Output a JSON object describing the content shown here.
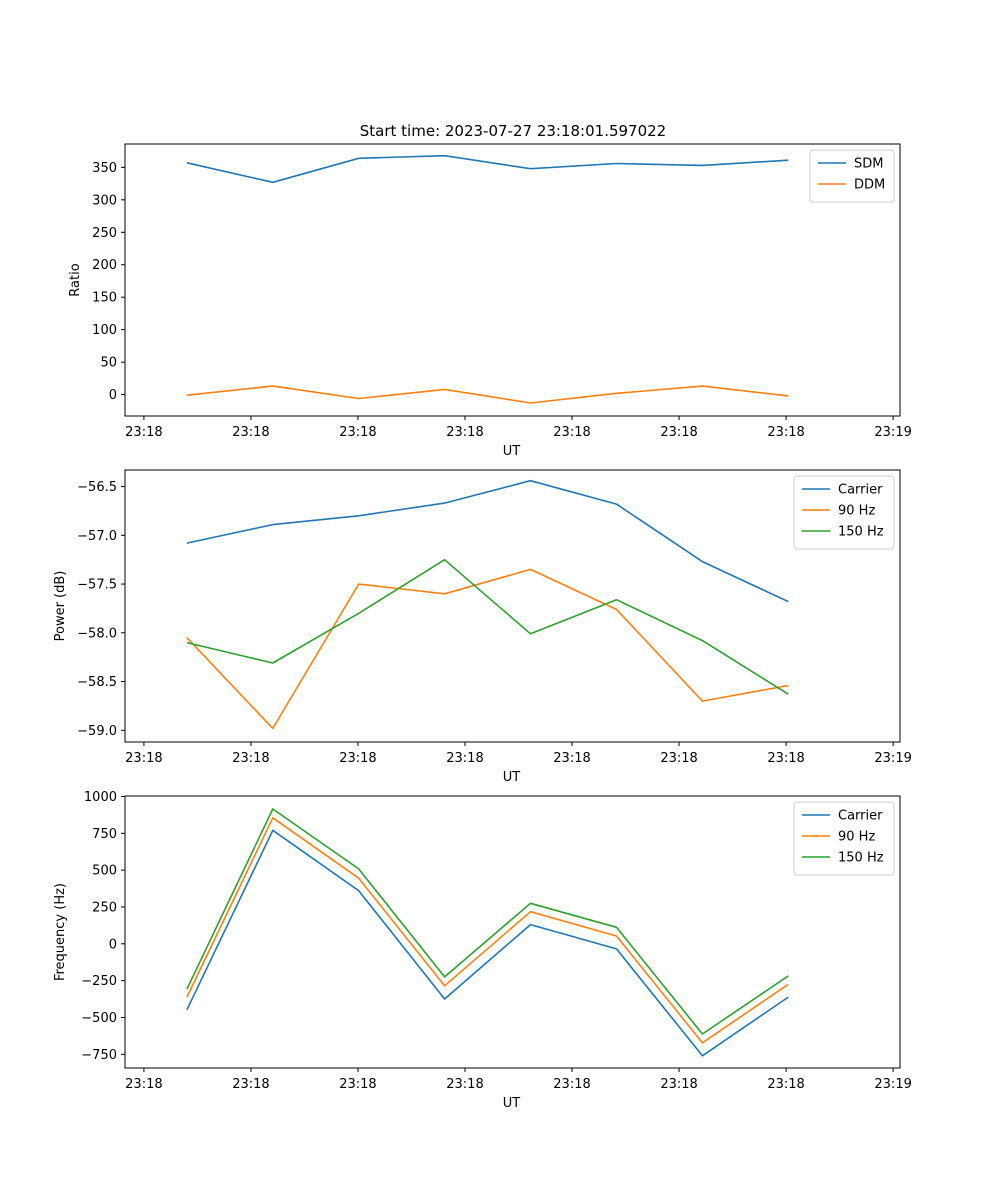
{
  "title": "Start time: 2023-07-27 23:18:01.597022",
  "colors": {
    "c0": "#1f77b4",
    "c1": "#ff7f0e",
    "c2": "#2ca02c"
  },
  "chart_data": [
    {
      "type": "line",
      "xlabel": "UT",
      "ylabel": "Ratio",
      "x_tick_labels": [
        "23:18",
        "23:18",
        "23:18",
        "23:18",
        "23:18",
        "23:18",
        "23:18"
      ],
      "x_end_label": "23:19",
      "xlim": [
        -0.72,
        8.3
      ],
      "ylim": [
        -33,
        386
      ],
      "yticks": [
        0,
        50,
        100,
        150,
        200,
        250,
        300,
        350
      ],
      "y_tick_labels": [
        "0",
        "50",
        "100",
        "150",
        "200",
        "250",
        "300",
        "350"
      ],
      "x": [
        0.0,
        1.0,
        2.0,
        3.0,
        4.0,
        5.0,
        6.0,
        7.0
      ],
      "legend_loc": "upper right",
      "series": [
        {
          "name": "SDM",
          "values": [
            357,
            327,
            364,
            368,
            348,
            356,
            353,
            361
          ]
        },
        {
          "name": "DDM",
          "values": [
            -1,
            13,
            -6,
            8,
            -13,
            2,
            13,
            -2
          ]
        }
      ]
    },
    {
      "type": "line",
      "xlabel": "UT",
      "ylabel": "Power (dB)",
      "x_tick_labels": [
        "23:18",
        "23:18",
        "23:18",
        "23:18",
        "23:18",
        "23:18",
        "23:18"
      ],
      "x_end_label": "23:19",
      "xlim": [
        -0.72,
        8.3
      ],
      "ylim": [
        -59.12,
        -56.33
      ],
      "yticks": [
        -59.0,
        -58.5,
        -58.0,
        -57.5,
        -57.0,
        -56.5
      ],
      "y_tick_labels": [
        "−59.0",
        "−58.5",
        "−58.0",
        "−57.5",
        "−57.0",
        "−56.5"
      ],
      "x": [
        0.0,
        1.0,
        2.0,
        3.0,
        4.0,
        5.0,
        6.0,
        7.0
      ],
      "legend_loc": "upper right",
      "series": [
        {
          "name": "Carrier",
          "values": [
            -57.08,
            -56.89,
            -56.8,
            -56.67,
            -56.44,
            -56.68,
            -57.27,
            -57.68
          ]
        },
        {
          "name": "90 Hz",
          "values": [
            -58.05,
            -58.98,
            -57.5,
            -57.6,
            -57.35,
            -57.76,
            -58.7,
            -58.54
          ]
        },
        {
          "name": "150 Hz",
          "values": [
            -58.1,
            -58.31,
            -57.8,
            -57.25,
            -58.01,
            -57.66,
            -58.08,
            -58.63
          ]
        }
      ]
    },
    {
      "type": "line",
      "xlabel": "UT",
      "ylabel": "Frequency (Hz)",
      "x_tick_labels": [
        "23:18",
        "23:18",
        "23:18",
        "23:18",
        "23:18",
        "23:18",
        "23:18"
      ],
      "x_end_label": "23:19",
      "xlim": [
        -0.72,
        8.3
      ],
      "ylim": [
        -843,
        1003
      ],
      "yticks": [
        -750,
        -500,
        -250,
        0,
        250,
        500,
        750,
        1000
      ],
      "y_tick_labels": [
        "−750",
        "−500",
        "−250",
        "0",
        "250",
        "500",
        "750",
        "1000"
      ],
      "x": [
        0.0,
        1.0,
        2.0,
        3.0,
        4.0,
        5.0,
        6.0,
        7.0
      ],
      "legend_loc": "upper right",
      "series": [
        {
          "name": "Carrier",
          "values": [
            -448,
            770,
            360,
            -375,
            130,
            -35,
            -760,
            -362
          ]
        },
        {
          "name": "90 Hz",
          "values": [
            -362,
            855,
            445,
            -285,
            218,
            53,
            -672,
            -275
          ]
        },
        {
          "name": "150 Hz",
          "values": [
            -308,
            915,
            508,
            -225,
            275,
            112,
            -612,
            -218
          ]
        }
      ]
    }
  ]
}
